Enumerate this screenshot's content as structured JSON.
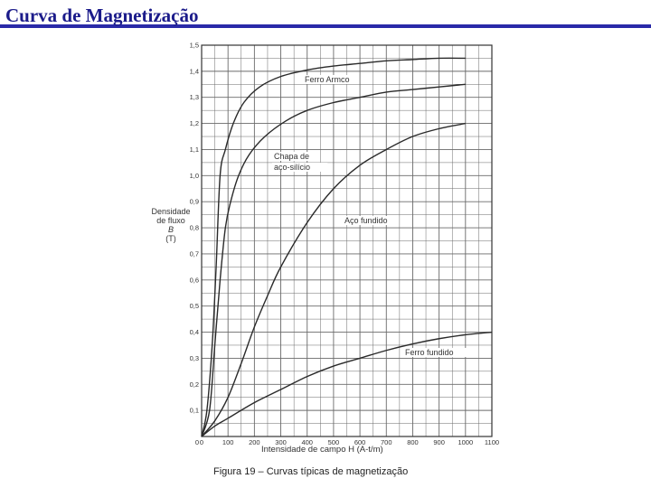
{
  "slide": {
    "title": "Curva de Magnetização",
    "caption": "Figura 19 – Curvas típicas de magnetização"
  },
  "colors": {
    "title": "#1b1b8a",
    "title_rule": "#2a2aa8",
    "grid": "#6a6a6a",
    "curve": "#2a2a2a"
  },
  "chart_data": {
    "type": "line",
    "xlabel": "Intensidade de campo H (A-t/m)",
    "ylabel": [
      "Densidade",
      "de fluxo",
      "B",
      "(T)"
    ],
    "xlim": [
      0,
      1100
    ],
    "ylim": [
      0,
      1.5
    ],
    "x_ticks": [
      "0",
      "100",
      "200",
      "300",
      "400",
      "500",
      "600",
      "700",
      "800",
      "900",
      "1000",
      "1100"
    ],
    "y_ticks": [
      "0,1",
      "0,2",
      "0,3",
      "0,4",
      "0,5",
      "0,6",
      "0,7",
      "0,8",
      "0,9",
      "1,0",
      "1,1",
      "1,2",
      "1,3",
      "1,4",
      "1,5"
    ],
    "grid": true,
    "series": [
      {
        "name": "Ferro Armco",
        "label": [
          "Ferro Armco"
        ],
        "x": [
          0,
          20,
          40,
          55,
          70,
          90,
          120,
          160,
          220,
          300,
          400,
          500,
          600,
          700,
          800,
          900,
          1000
        ],
        "y": [
          0,
          0.1,
          0.35,
          0.65,
          1.0,
          1.1,
          1.2,
          1.28,
          1.34,
          1.38,
          1.405,
          1.42,
          1.43,
          1.44,
          1.445,
          1.45,
          1.45
        ]
      },
      {
        "name": "Chapa de aço-silício",
        "label": [
          "Chapa de",
          "aço-silício"
        ],
        "x": [
          0,
          30,
          50,
          70,
          90,
          110,
          140,
          180,
          240,
          320,
          400,
          500,
          600,
          700,
          800,
          900,
          1000
        ],
        "y": [
          0,
          0.1,
          0.35,
          0.6,
          0.8,
          0.9,
          1.0,
          1.08,
          1.15,
          1.21,
          1.25,
          1.28,
          1.3,
          1.32,
          1.33,
          1.34,
          1.35
        ]
      },
      {
        "name": "Aço fundido",
        "label": [
          "Aço fundido"
        ],
        "x": [
          0,
          50,
          100,
          150,
          200,
          250,
          300,
          400,
          500,
          600,
          700,
          800,
          900,
          1000
        ],
        "y": [
          0,
          0.06,
          0.15,
          0.28,
          0.42,
          0.54,
          0.65,
          0.82,
          0.95,
          1.04,
          1.1,
          1.15,
          1.18,
          1.2
        ]
      },
      {
        "name": "Ferro fundido",
        "label": [
          "Ferro fundido"
        ],
        "x": [
          0,
          50,
          100,
          200,
          300,
          400,
          500,
          600,
          700,
          800,
          900,
          1000,
          1100
        ],
        "y": [
          0,
          0.04,
          0.07,
          0.13,
          0.18,
          0.23,
          0.27,
          0.3,
          0.33,
          0.355,
          0.375,
          0.39,
          0.4
        ]
      }
    ]
  }
}
